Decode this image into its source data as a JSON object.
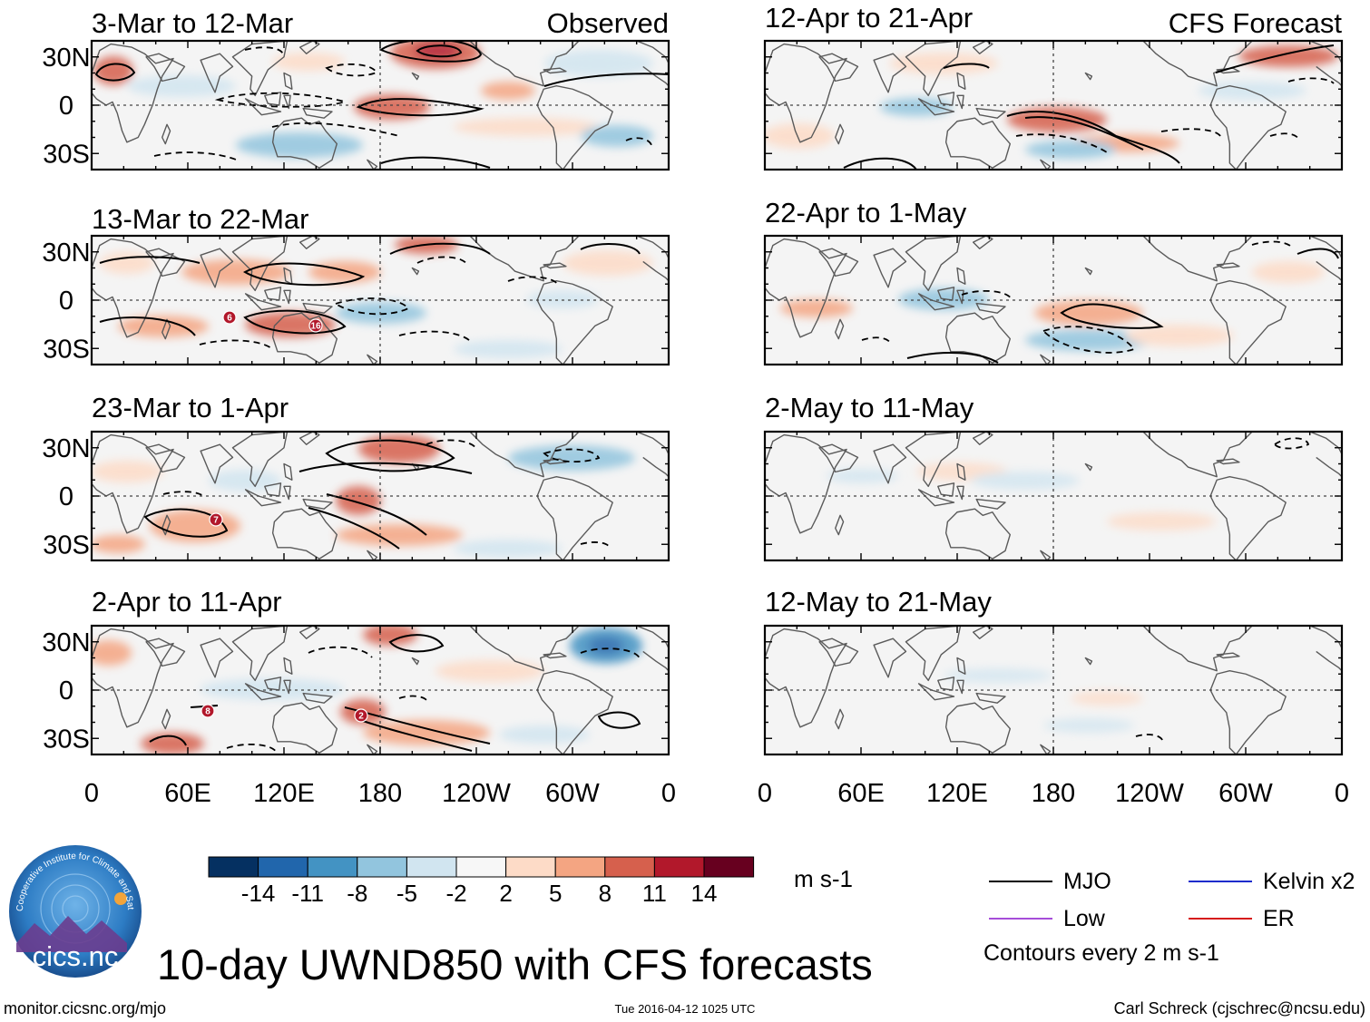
{
  "observed_label": "Observed",
  "forecast_label": "CFS Forecast",
  "lat_labels": [
    "30N",
    "0",
    "30S"
  ],
  "lon_labels": [
    "0",
    "60E",
    "120E",
    "180",
    "120W",
    "60W",
    "0"
  ],
  "panels_left": [
    {
      "title": "3-Mar to 12-Mar"
    },
    {
      "title": "13-Mar to 22-Mar"
    },
    {
      "title": "23-Mar to 1-Apr"
    },
    {
      "title": "2-Apr to 11-Apr"
    }
  ],
  "panels_right": [
    {
      "title": "12-Apr to 21-Apr"
    },
    {
      "title": "22-Apr to 1-May"
    },
    {
      "title": "2-May to 11-May"
    },
    {
      "title": "12-May to 21-May"
    }
  ],
  "colorbar": {
    "colors": [
      "#053061",
      "#2166ac",
      "#4393c3",
      "#92c5de",
      "#d1e5f0",
      "#f7f7f7",
      "#fddbc7",
      "#f4a582",
      "#d6604d",
      "#b2182b",
      "#67001f"
    ],
    "labels": [
      "-14",
      "-11",
      "-8",
      "-5",
      "-2",
      "2",
      "5",
      "8",
      "11",
      "14"
    ],
    "units": "m s-1"
  },
  "legend": {
    "items": [
      {
        "label": "MJO",
        "color": "#000000"
      },
      {
        "label": "Kelvin x2",
        "color": "#1a2ccc"
      },
      {
        "label": "Low",
        "color": "#a64dd9"
      },
      {
        "label": "ER",
        "color": "#d61b1b"
      }
    ],
    "contour_note": "Contours every 2 m s-1"
  },
  "main_title": "10-day UWND850 with CFS forecasts",
  "footer": {
    "left": "monitor.cicsnc.org/mjo",
    "center": "Tue 2016-04-12 1025 UTC",
    "right": "Carl Schreck (cjschrec@ncsu.edu)"
  },
  "logo": {
    "text": "cics.nc",
    "arc_text": "Cooperative Institute for Climate and Satellites"
  },
  "storm_markers": {
    "p1": [
      "6",
      "16"
    ],
    "p2": [
      "7"
    ],
    "p3": [
      "8",
      "2"
    ]
  },
  "chart_data": {
    "type": "heatmap",
    "title": "10-day UWND850 with CFS forecasts",
    "variable": "850-hPa zonal wind anomaly",
    "units": "m s-1",
    "x_range_deg_east": [
      0,
      360
    ],
    "y_range_deg": [
      -40,
      40
    ],
    "shading_levels": [
      -14,
      -11,
      -8,
      -5,
      -2,
      2,
      5,
      8,
      11,
      14
    ],
    "contour_interval": 2,
    "panels": [
      {
        "period": "3-Mar to 12-Mar",
        "source": "Observed",
        "anomalies": [
          {
            "lon": 205,
            "lat": 30,
            "value": 12
          },
          {
            "lon": 185,
            "lat": 0,
            "value": 9
          },
          {
            "lon": 10,
            "lat": 20,
            "value": 8
          }
        ]
      },
      {
        "period": "13-Mar to 22-Mar",
        "source": "Observed",
        "anomalies": [
          {
            "lon": 140,
            "lat": -12,
            "value": 7
          },
          {
            "lon": 160,
            "lat": -5,
            "value": -5
          }
        ]
      },
      {
        "period": "23-Mar to 1-Apr",
        "source": "Observed",
        "anomalies": [
          {
            "lon": 190,
            "lat": 25,
            "value": 10
          },
          {
            "lon": 175,
            "lat": 0,
            "value": 10
          },
          {
            "lon": 70,
            "lat": -20,
            "value": 7
          }
        ]
      },
      {
        "period": "2-Apr to 11-Apr",
        "source": "Observed",
        "anomalies": [
          {
            "lon": 300,
            "lat": 25,
            "value": -9
          },
          {
            "lon": 190,
            "lat": -22,
            "value": 7
          }
        ]
      },
      {
        "period": "12-Apr to 21-Apr",
        "source": "CFS Forecast",
        "anomalies": [
          {
            "lon": 145,
            "lat": -10,
            "value": 9
          },
          {
            "lon": 325,
            "lat": 25,
            "value": 7
          }
        ]
      },
      {
        "period": "22-Apr to 1-May",
        "source": "CFS Forecast",
        "anomalies": [
          {
            "lon": 180,
            "lat": -5,
            "value": 6
          },
          {
            "lon": 190,
            "lat": -20,
            "value": -5
          }
        ]
      },
      {
        "period": "2-May to 11-May",
        "source": "CFS Forecast",
        "anomalies": [
          {
            "lon": 200,
            "lat": 5,
            "value": -3
          }
        ]
      },
      {
        "period": "12-May to 21-May",
        "source": "CFS Forecast",
        "anomalies": [
          {
            "lon": 170,
            "lat": 5,
            "value": -3
          }
        ]
      }
    ]
  }
}
